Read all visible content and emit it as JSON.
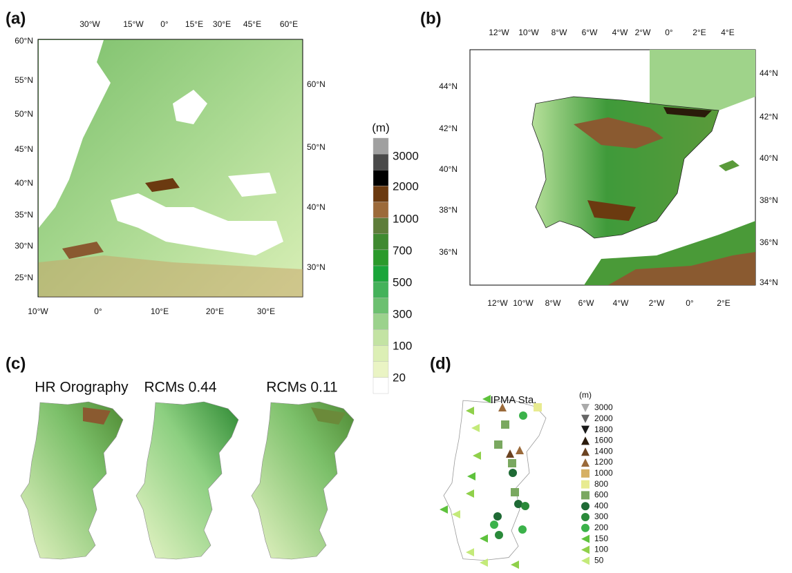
{
  "panels": [
    {
      "label": "(a)",
      "top_ticks": [
        "30°W",
        "15°W",
        "0°",
        "15°E",
        "30°E",
        "45°E",
        "60°E"
      ],
      "left_ticks": [
        "60°N",
        "55°N",
        "50°N",
        "45°N",
        "40°N",
        "35°N",
        "30°N",
        "25°N"
      ],
      "right_ticks": [
        "60°N",
        "50°N",
        "40°N",
        "30°N"
      ],
      "bottom_ticks": [
        "10°W",
        "0°",
        "10°E",
        "20°E",
        "30°E"
      ]
    },
    {
      "label": "(b)",
      "top_ticks": [
        "12°W",
        "10°W",
        "8°W",
        "6°W",
        "4°W",
        "2°W",
        "0°",
        "2°E",
        "4°E"
      ],
      "left_ticks": [
        "44°N",
        "42°N",
        "40°N",
        "38°N",
        "36°N"
      ],
      "right_ticks": [
        "44°N",
        "42°N",
        "40°N",
        "38°N",
        "36°N",
        "34°N"
      ],
      "bottom_ticks": [
        "12°W",
        "10°W",
        "8°W",
        "6°W",
        "4°W",
        "2°W",
        "0°",
        "2°E"
      ]
    }
  ],
  "colorbar": {
    "unit": "(m)",
    "labels": [
      "3000",
      "2000",
      "1000",
      "700",
      "500",
      "300",
      "100",
      "20"
    ]
  },
  "panel_c": {
    "label": "(c)",
    "titles": [
      "HR Orography",
      "RCMs 0.44",
      "RCMs 0.11"
    ]
  },
  "panel_d": {
    "label": "(d)",
    "title": "IPMA Sta.",
    "unit": "(m)",
    "legend": [
      "3000",
      "2000",
      "1800",
      "1600",
      "1400",
      "1200",
      "1000",
      "800",
      "600",
      "400",
      "300",
      "200",
      "150",
      "100",
      "50"
    ]
  }
}
